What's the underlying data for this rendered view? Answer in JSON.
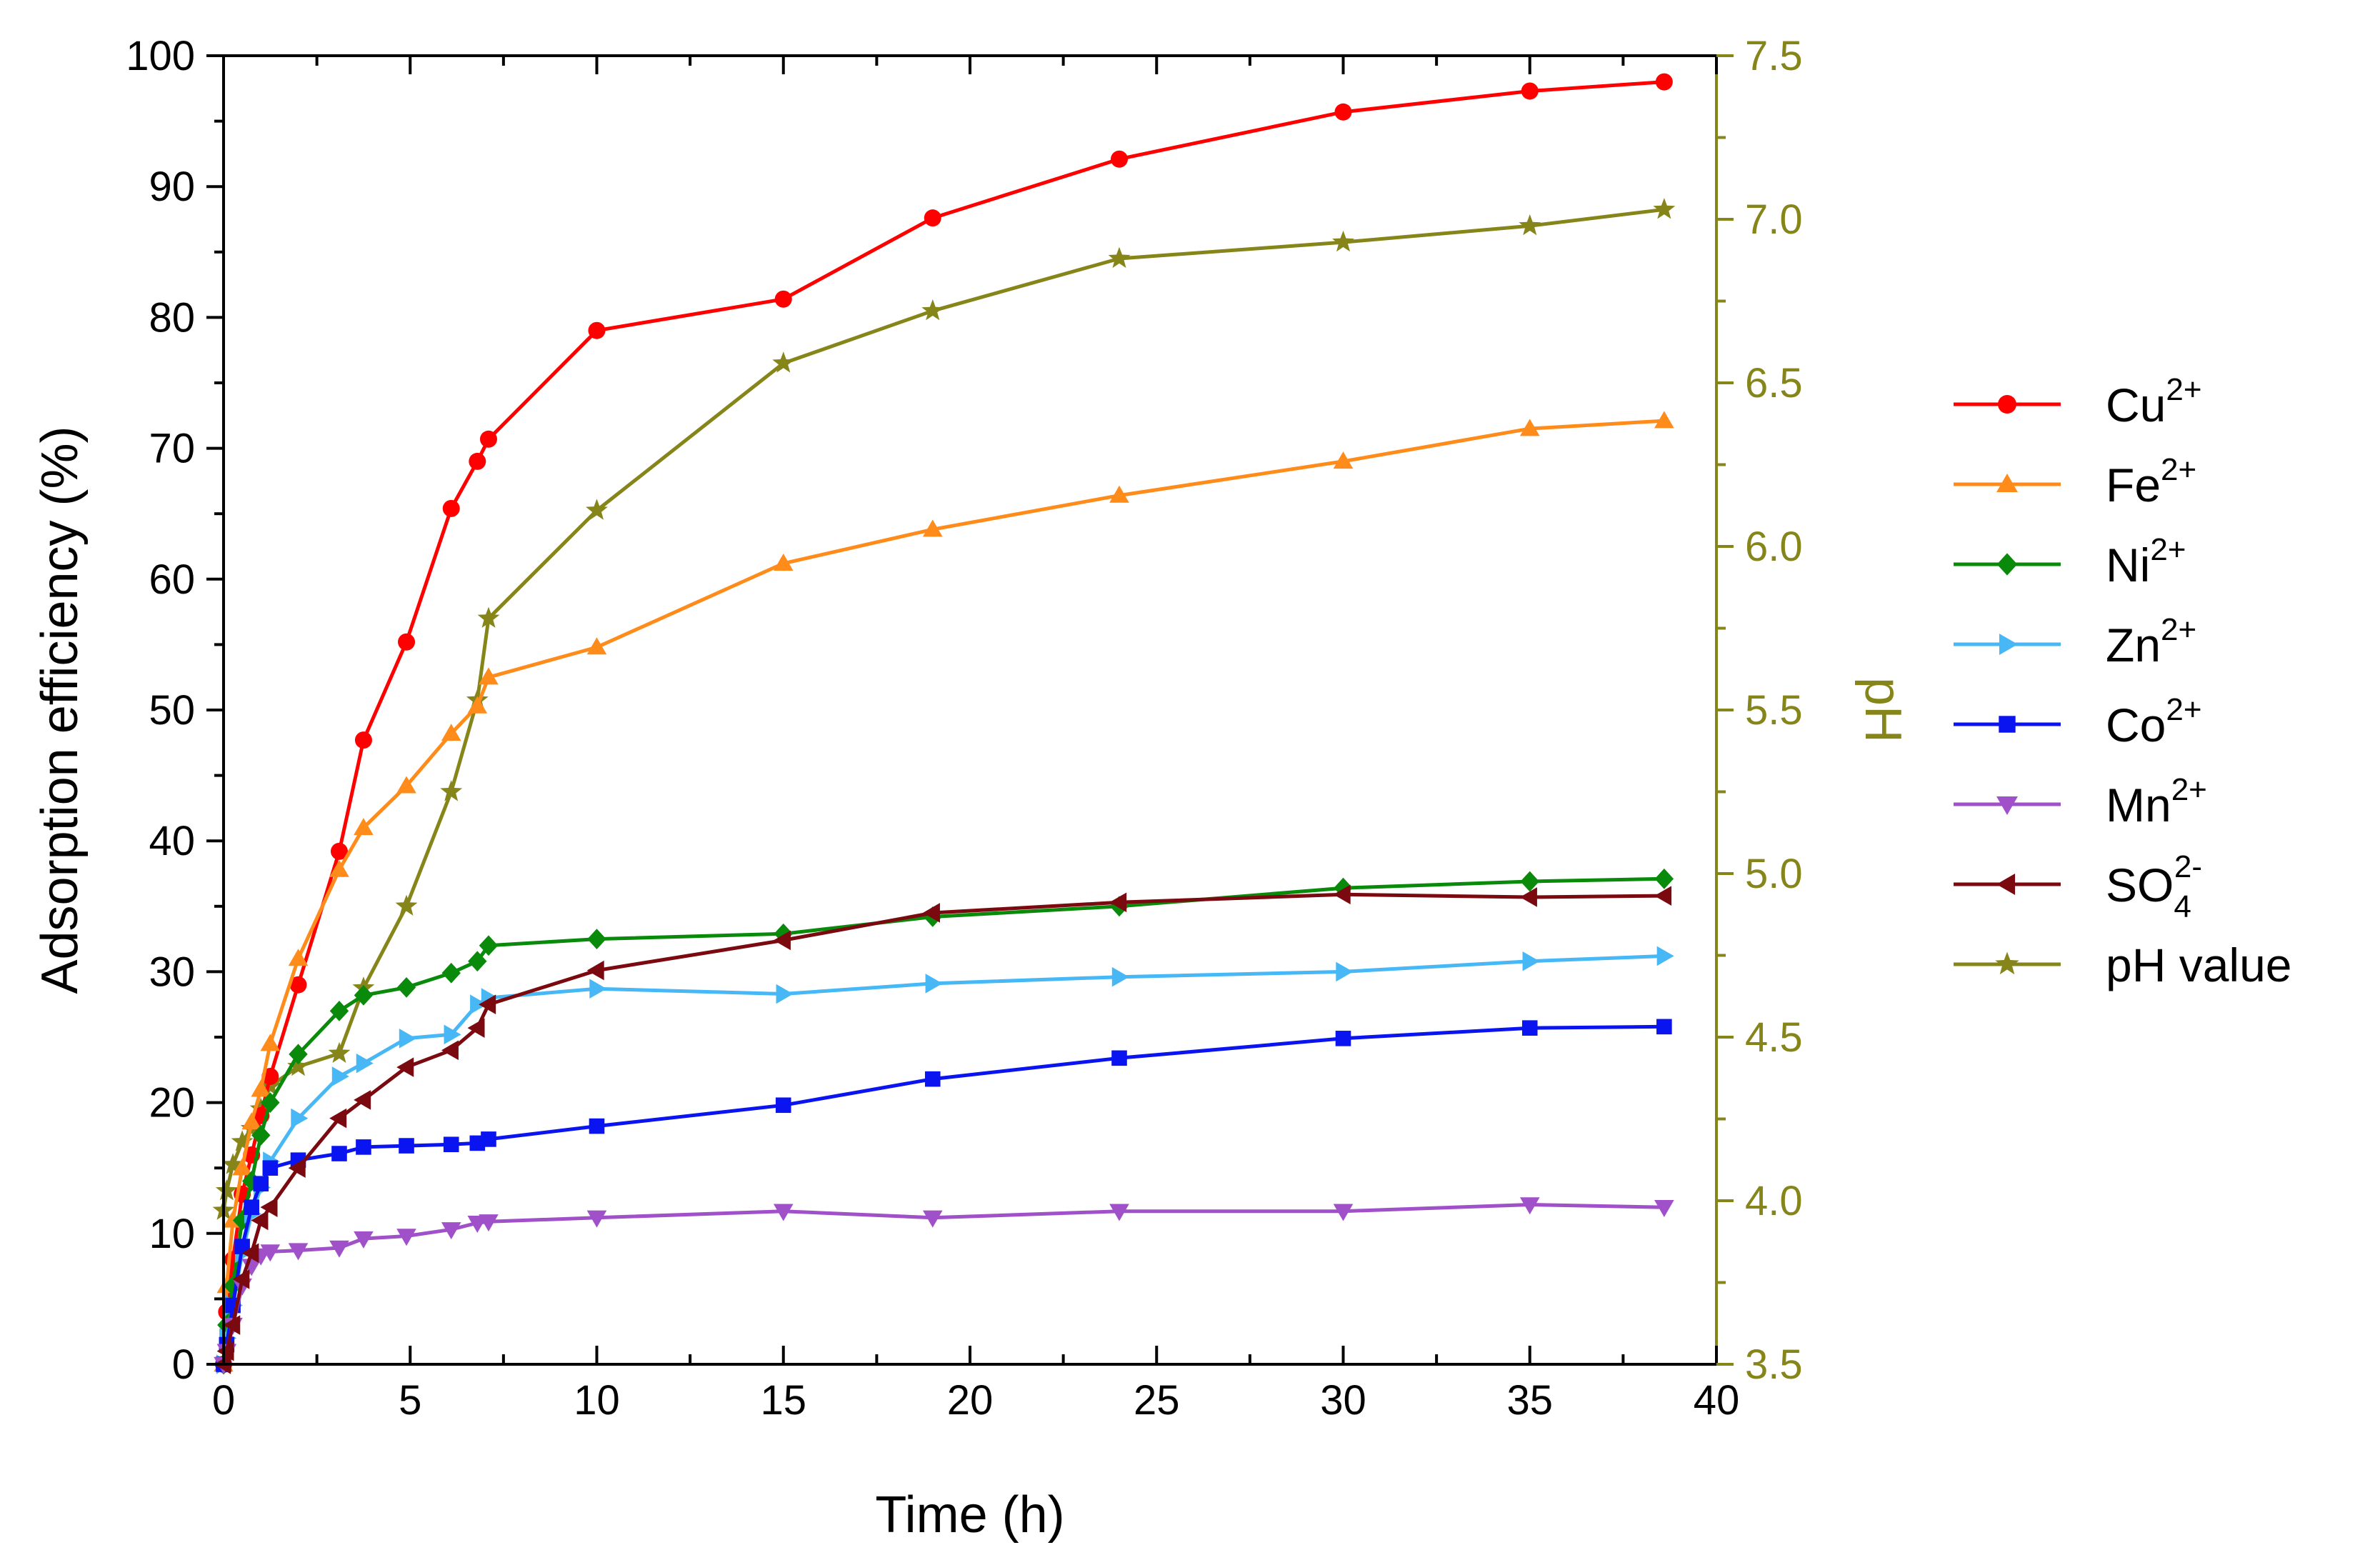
{
  "chart_data": {
    "type": "line",
    "xlabel": "Time (h)",
    "ylabel": "Adsorption efficiency (%)",
    "y2label": "pH",
    "xlim": [
      0,
      40
    ],
    "ylim": [
      0,
      100
    ],
    "y2lim": [
      3.5,
      7.5
    ],
    "xticks": [
      0,
      5,
      10,
      15,
      20,
      25,
      30,
      35,
      40
    ],
    "yticks": [
      0,
      10,
      20,
      30,
      40,
      50,
      60,
      70,
      80,
      90,
      100
    ],
    "y2ticks": [
      3.5,
      4.0,
      4.5,
      5.0,
      5.5,
      6.0,
      6.5,
      7.0,
      7.5
    ],
    "xtick_labels": [
      "0",
      "5",
      "10",
      "15",
      "20",
      "25",
      "30",
      "35",
      "40"
    ],
    "ytick_labels": [
      "0",
      "10",
      "20",
      "30",
      "40",
      "50",
      "60",
      "70",
      "80",
      "90",
      "100"
    ],
    "y2tick_labels": [
      "3.5",
      "4.0",
      "4.5",
      "5.0",
      "5.5",
      "6.0",
      "6.5",
      "7.0",
      "7.5"
    ],
    "x": [
      0,
      0.083,
      0.25,
      0.5,
      0.75,
      1,
      1.25,
      2,
      3.1,
      3.75,
      4.9,
      6.1,
      6.8,
      7.1,
      10,
      15,
      19,
      24,
      30,
      35,
      38.6
    ],
    "legend": {
      "position": "right"
    },
    "series": [
      {
        "name": "Cu",
        "sup": "2+",
        "sub": "",
        "color": "#ff0000",
        "marker": "circle",
        "axis": "left",
        "values": [
          0,
          4,
          8,
          13,
          16,
          19,
          22,
          29,
          39.2,
          47.7,
          55.2,
          65.4,
          69,
          70.7,
          79,
          81.4,
          87.6,
          92.1,
          95.7,
          97.3,
          98
        ]
      },
      {
        "name": "Fe",
        "sup": "2+",
        "sub": "",
        "color": "#ff8c1a",
        "marker": "triangle-up",
        "axis": "left",
        "values": [
          0,
          6,
          11,
          15,
          18.5,
          21,
          24.5,
          31,
          37.8,
          41,
          44.2,
          48.2,
          50.3,
          52.5,
          54.8,
          61.2,
          63.8,
          66.4,
          69,
          71.5,
          72.1
        ]
      },
      {
        "name": "Ni",
        "sup": "2+",
        "sub": "",
        "color": "#0a8a0a",
        "marker": "diamond",
        "axis": "left",
        "values": [
          0,
          3,
          6,
          11,
          14,
          17.5,
          20,
          23.7,
          27,
          28.2,
          28.8,
          29.9,
          30.8,
          32,
          32.5,
          32.9,
          34.2,
          35,
          36.4,
          36.9,
          37.1
        ]
      },
      {
        "name": "Zn",
        "sup": "2+",
        "sub": "",
        "color": "#47b8f5",
        "marker": "triangle-right",
        "axis": "left",
        "values": [
          0,
          2,
          4.5,
          8.5,
          11.5,
          13.5,
          15.5,
          18.8,
          22,
          23,
          24.9,
          25.2,
          27.5,
          28,
          28.7,
          28.3,
          29.1,
          29.6,
          30,
          30.8,
          31.2
        ]
      },
      {
        "name": "Co",
        "sup": "2+",
        "sub": "",
        "color": "#0a14f0",
        "marker": "square",
        "axis": "left",
        "values": [
          0,
          1.5,
          4.5,
          9,
          12,
          13.8,
          15,
          15.6,
          16.1,
          16.6,
          16.7,
          16.8,
          16.9,
          17.2,
          18.2,
          19.8,
          21.8,
          23.4,
          24.9,
          25.7,
          25.8
        ]
      },
      {
        "name": "Mn",
        "sup": "2+",
        "sub": "",
        "color": "#a050c8",
        "marker": "triangle-down",
        "axis": "left",
        "values": [
          0,
          1,
          3,
          6,
          7.5,
          8.3,
          8.6,
          8.7,
          8.9,
          9.6,
          9.8,
          10.3,
          10.8,
          10.9,
          11.2,
          11.7,
          11.2,
          11.7,
          11.7,
          12.2,
          12
        ]
      },
      {
        "name": "SO",
        "sup": "2-",
        "sub": "4",
        "color": "#7a0a10",
        "marker": "triangle-left",
        "axis": "left",
        "values": [
          0,
          1,
          3,
          6.5,
          8.5,
          11,
          12,
          15,
          18.8,
          20.2,
          22.7,
          24,
          25.7,
          27.5,
          30.1,
          32.4,
          34.5,
          35.3,
          35.9,
          35.7,
          35.8
        ]
      },
      {
        "name": "pH value",
        "sup": "",
        "sub": "",
        "color": "#85851a",
        "marker": "star",
        "axis": "right",
        "values": [
          3.97,
          4.03,
          4.11,
          4.18,
          4.22,
          4.28,
          4.35,
          4.41,
          4.45,
          4.65,
          4.9,
          5.25,
          5.53,
          5.78,
          6.11,
          6.56,
          6.72,
          6.88,
          6.93,
          6.98,
          7.03
        ]
      }
    ]
  }
}
